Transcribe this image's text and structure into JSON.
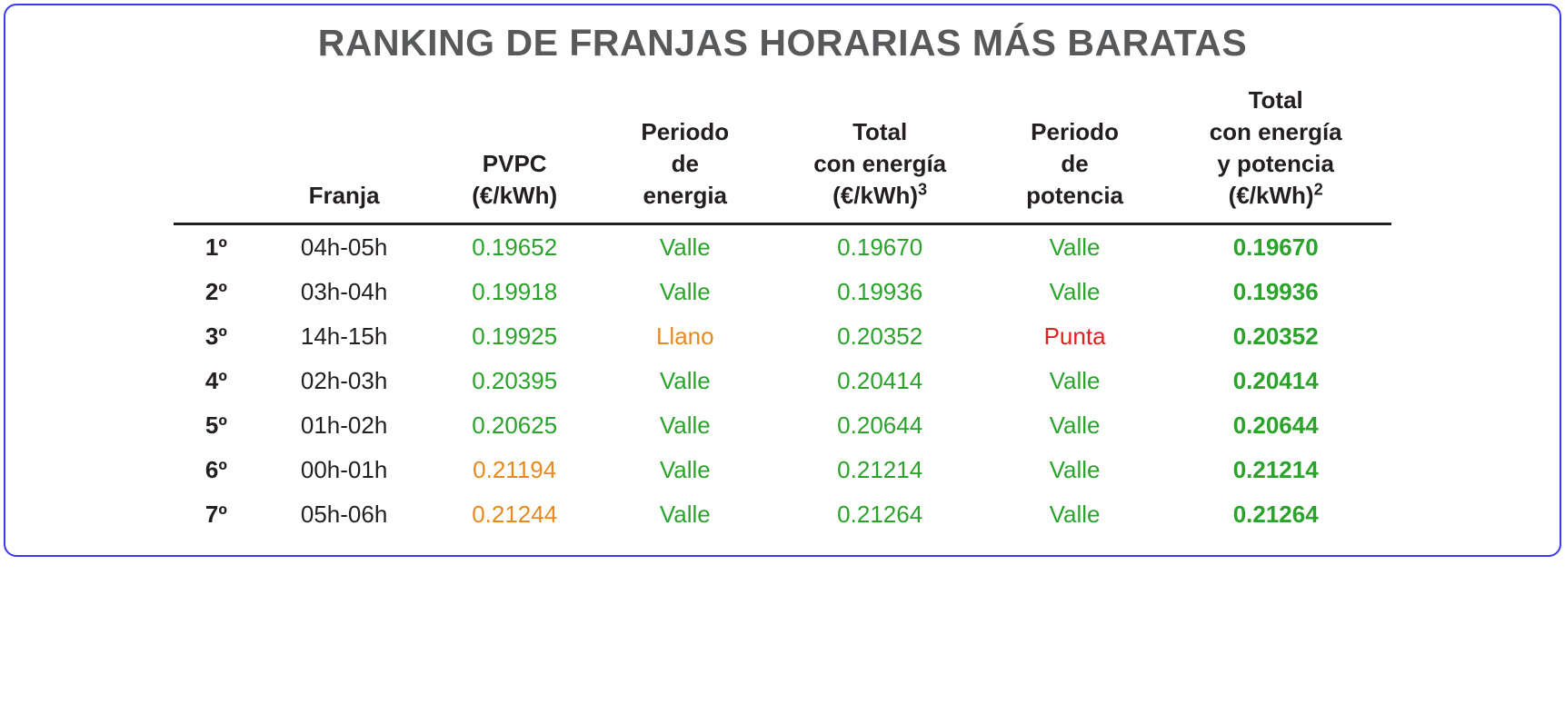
{
  "title": "RANKING DE FRANJAS HORARIAS MÁS BARATAS",
  "colors": {
    "title": "#58595b",
    "header_text": "#231f20",
    "border_frame": "#3a3af0",
    "border_header": "#231f20",
    "valle": "#2ba22b",
    "llano": "#e68a1f",
    "punta": "#e32020",
    "price_low": "#2ba22b",
    "price_mid": "#e68a1f",
    "background": "#ffffff"
  },
  "typography": {
    "title_fontsize": 41,
    "header_fontsize": 26,
    "cell_fontsize": 26,
    "font_family": "Segoe UI"
  },
  "table": {
    "type": "table",
    "columns": [
      {
        "key": "rank",
        "label_lines": [
          ""
        ],
        "align": "center",
        "width_pct": 7
      },
      {
        "key": "franja",
        "label_lines": [
          "Franja"
        ],
        "align": "center",
        "width_pct": 14
      },
      {
        "key": "pvpc",
        "label_lines": [
          "PVPC",
          "(€/kWh)"
        ],
        "align": "center",
        "width_pct": 14
      },
      {
        "key": "periodo_energia",
        "label_lines": [
          "Periodo",
          "de",
          "energia"
        ],
        "align": "center",
        "width_pct": 14
      },
      {
        "key": "total_energia",
        "label_lines": [
          "Total",
          "con energía",
          "(€/kWh)"
        ],
        "sup": "3",
        "align": "center",
        "width_pct": 18
      },
      {
        "key": "periodo_potencia",
        "label_lines": [
          "Periodo",
          "de",
          "potencia"
        ],
        "align": "center",
        "width_pct": 14
      },
      {
        "key": "total_energia_potencia",
        "label_lines": [
          "Total",
          "con energía",
          "y potencia",
          "(€/kWh)"
        ],
        "sup": "2",
        "align": "center",
        "width_pct": 19
      }
    ],
    "rows": [
      {
        "rank": "1º",
        "franja": "04h-05h",
        "pvpc": {
          "value": "0.19652",
          "color": "#2ba22b"
        },
        "periodo_energia": {
          "value": "Valle",
          "color": "#2ba22b"
        },
        "total_energia": {
          "value": "0.19670",
          "color": "#2ba22b"
        },
        "periodo_potencia": {
          "value": "Valle",
          "color": "#2ba22b"
        },
        "total_energia_potencia": {
          "value": "0.19670",
          "color": "#2ba22b"
        }
      },
      {
        "rank": "2º",
        "franja": "03h-04h",
        "pvpc": {
          "value": "0.19918",
          "color": "#2ba22b"
        },
        "periodo_energia": {
          "value": "Valle",
          "color": "#2ba22b"
        },
        "total_energia": {
          "value": "0.19936",
          "color": "#2ba22b"
        },
        "periodo_potencia": {
          "value": "Valle",
          "color": "#2ba22b"
        },
        "total_energia_potencia": {
          "value": "0.19936",
          "color": "#2ba22b"
        }
      },
      {
        "rank": "3º",
        "franja": "14h-15h",
        "pvpc": {
          "value": "0.19925",
          "color": "#2ba22b"
        },
        "periodo_energia": {
          "value": "Llano",
          "color": "#e68a1f"
        },
        "total_energia": {
          "value": "0.20352",
          "color": "#2ba22b"
        },
        "periodo_potencia": {
          "value": "Punta",
          "color": "#e32020"
        },
        "total_energia_potencia": {
          "value": "0.20352",
          "color": "#2ba22b"
        }
      },
      {
        "rank": "4º",
        "franja": "02h-03h",
        "pvpc": {
          "value": "0.20395",
          "color": "#2ba22b"
        },
        "periodo_energia": {
          "value": "Valle",
          "color": "#2ba22b"
        },
        "total_energia": {
          "value": "0.20414",
          "color": "#2ba22b"
        },
        "periodo_potencia": {
          "value": "Valle",
          "color": "#2ba22b"
        },
        "total_energia_potencia": {
          "value": "0.20414",
          "color": "#2ba22b"
        }
      },
      {
        "rank": "5º",
        "franja": "01h-02h",
        "pvpc": {
          "value": "0.20625",
          "color": "#2ba22b"
        },
        "periodo_energia": {
          "value": "Valle",
          "color": "#2ba22b"
        },
        "total_energia": {
          "value": "0.20644",
          "color": "#2ba22b"
        },
        "periodo_potencia": {
          "value": "Valle",
          "color": "#2ba22b"
        },
        "total_energia_potencia": {
          "value": "0.20644",
          "color": "#2ba22b"
        }
      },
      {
        "rank": "6º",
        "franja": "00h-01h",
        "pvpc": {
          "value": "0.21194",
          "color": "#e68a1f"
        },
        "periodo_energia": {
          "value": "Valle",
          "color": "#2ba22b"
        },
        "total_energia": {
          "value": "0.21214",
          "color": "#2ba22b"
        },
        "periodo_potencia": {
          "value": "Valle",
          "color": "#2ba22b"
        },
        "total_energia_potencia": {
          "value": "0.21214",
          "color": "#2ba22b"
        }
      },
      {
        "rank": "7º",
        "franja": "05h-06h",
        "pvpc": {
          "value": "0.21244",
          "color": "#e68a1f"
        },
        "periodo_energia": {
          "value": "Valle",
          "color": "#2ba22b"
        },
        "total_energia": {
          "value": "0.21264",
          "color": "#2ba22b"
        },
        "periodo_potencia": {
          "value": "Valle",
          "color": "#2ba22b"
        },
        "total_energia_potencia": {
          "value": "0.21264",
          "color": "#2ba22b"
        }
      }
    ]
  }
}
